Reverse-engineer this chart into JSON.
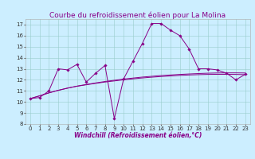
{
  "title": "Courbe du refroidissement éolien pour La Molina",
  "xlabel": "Windchill (Refroidissement éolien,°C)",
  "bg_color": "#cceeff",
  "line_color": "#880088",
  "grid_color": "#99cccc",
  "x": [
    0,
    1,
    2,
    3,
    4,
    5,
    6,
    7,
    8,
    9,
    10,
    11,
    12,
    13,
    14,
    15,
    16,
    17,
    18,
    19,
    20,
    21,
    22,
    23
  ],
  "y_main": [
    10.3,
    10.4,
    11.0,
    13.0,
    12.9,
    13.4,
    11.8,
    12.6,
    13.3,
    8.5,
    12.1,
    13.7,
    15.3,
    17.1,
    17.1,
    16.5,
    16.0,
    14.8,
    13.0,
    13.0,
    12.9,
    12.6,
    12.0,
    12.5
  ],
  "y_trend1": [
    10.3,
    10.55,
    10.82,
    11.05,
    11.25,
    11.42,
    11.55,
    11.68,
    11.8,
    11.9,
    12.0,
    12.09,
    12.17,
    12.24,
    12.3,
    12.35,
    12.4,
    12.44,
    12.47,
    12.49,
    12.5,
    12.5,
    12.49,
    12.47
  ],
  "y_trend2": [
    10.3,
    10.55,
    10.82,
    11.05,
    11.25,
    11.43,
    11.58,
    11.72,
    11.85,
    11.96,
    12.07,
    12.16,
    12.25,
    12.32,
    12.39,
    12.44,
    12.49,
    12.53,
    12.57,
    12.6,
    12.62,
    12.63,
    12.63,
    12.62
  ],
  "ylim_min": 8,
  "ylim_max": 17.5,
  "xlim_min": -0.5,
  "xlim_max": 23.5,
  "title_fontsize": 6.5,
  "label_fontsize": 5.5,
  "tick_fontsize": 5.0
}
